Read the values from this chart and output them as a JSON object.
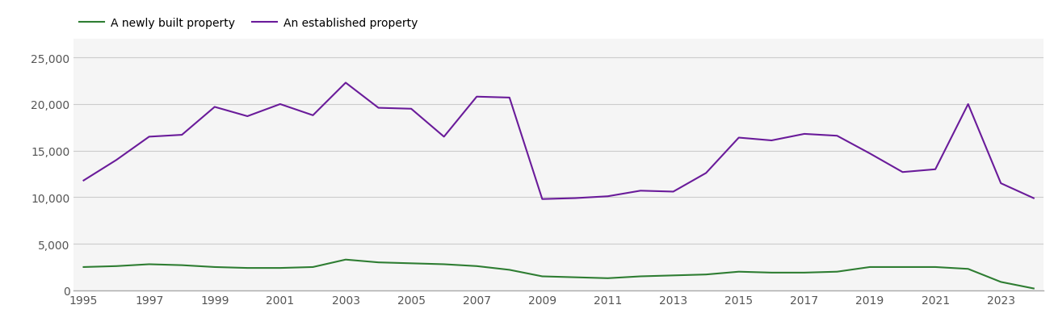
{
  "years": [
    1995,
    1996,
    1997,
    1998,
    1999,
    2000,
    2001,
    2002,
    2003,
    2004,
    2005,
    2006,
    2007,
    2008,
    2009,
    2010,
    2011,
    2012,
    2013,
    2014,
    2015,
    2016,
    2017,
    2018,
    2019,
    2020,
    2021,
    2022,
    2023,
    2024
  ],
  "newly_built": [
    2500,
    2600,
    2800,
    2700,
    2500,
    2400,
    2400,
    2500,
    3300,
    3000,
    2900,
    2800,
    2600,
    2200,
    1500,
    1400,
    1300,
    1500,
    1600,
    1700,
    2000,
    1900,
    1900,
    2000,
    2500,
    2500,
    2500,
    2300,
    900,
    200
  ],
  "established": [
    11800,
    14000,
    16500,
    16700,
    19700,
    18700,
    20000,
    18800,
    22300,
    19600,
    19500,
    16500,
    20800,
    20700,
    9800,
    9900,
    10100,
    10700,
    10600,
    12600,
    16400,
    16100,
    16800,
    16600,
    14700,
    12700,
    13000,
    20000,
    11500,
    9900
  ],
  "newly_built_color": "#2e7d32",
  "established_color": "#6a1b9a",
  "legend_labels": [
    "A newly built property",
    "An established property"
  ],
  "ylim": [
    0,
    27000
  ],
  "yticks": [
    0,
    5000,
    10000,
    15000,
    20000,
    25000
  ],
  "background_color": "#ffffff",
  "plot_bg_color": "#f5f5f5",
  "grid_color": "#cccccc",
  "tick_label_color": "#555555",
  "line_width": 1.5,
  "legend_fontsize": 10,
  "tick_fontsize": 10
}
